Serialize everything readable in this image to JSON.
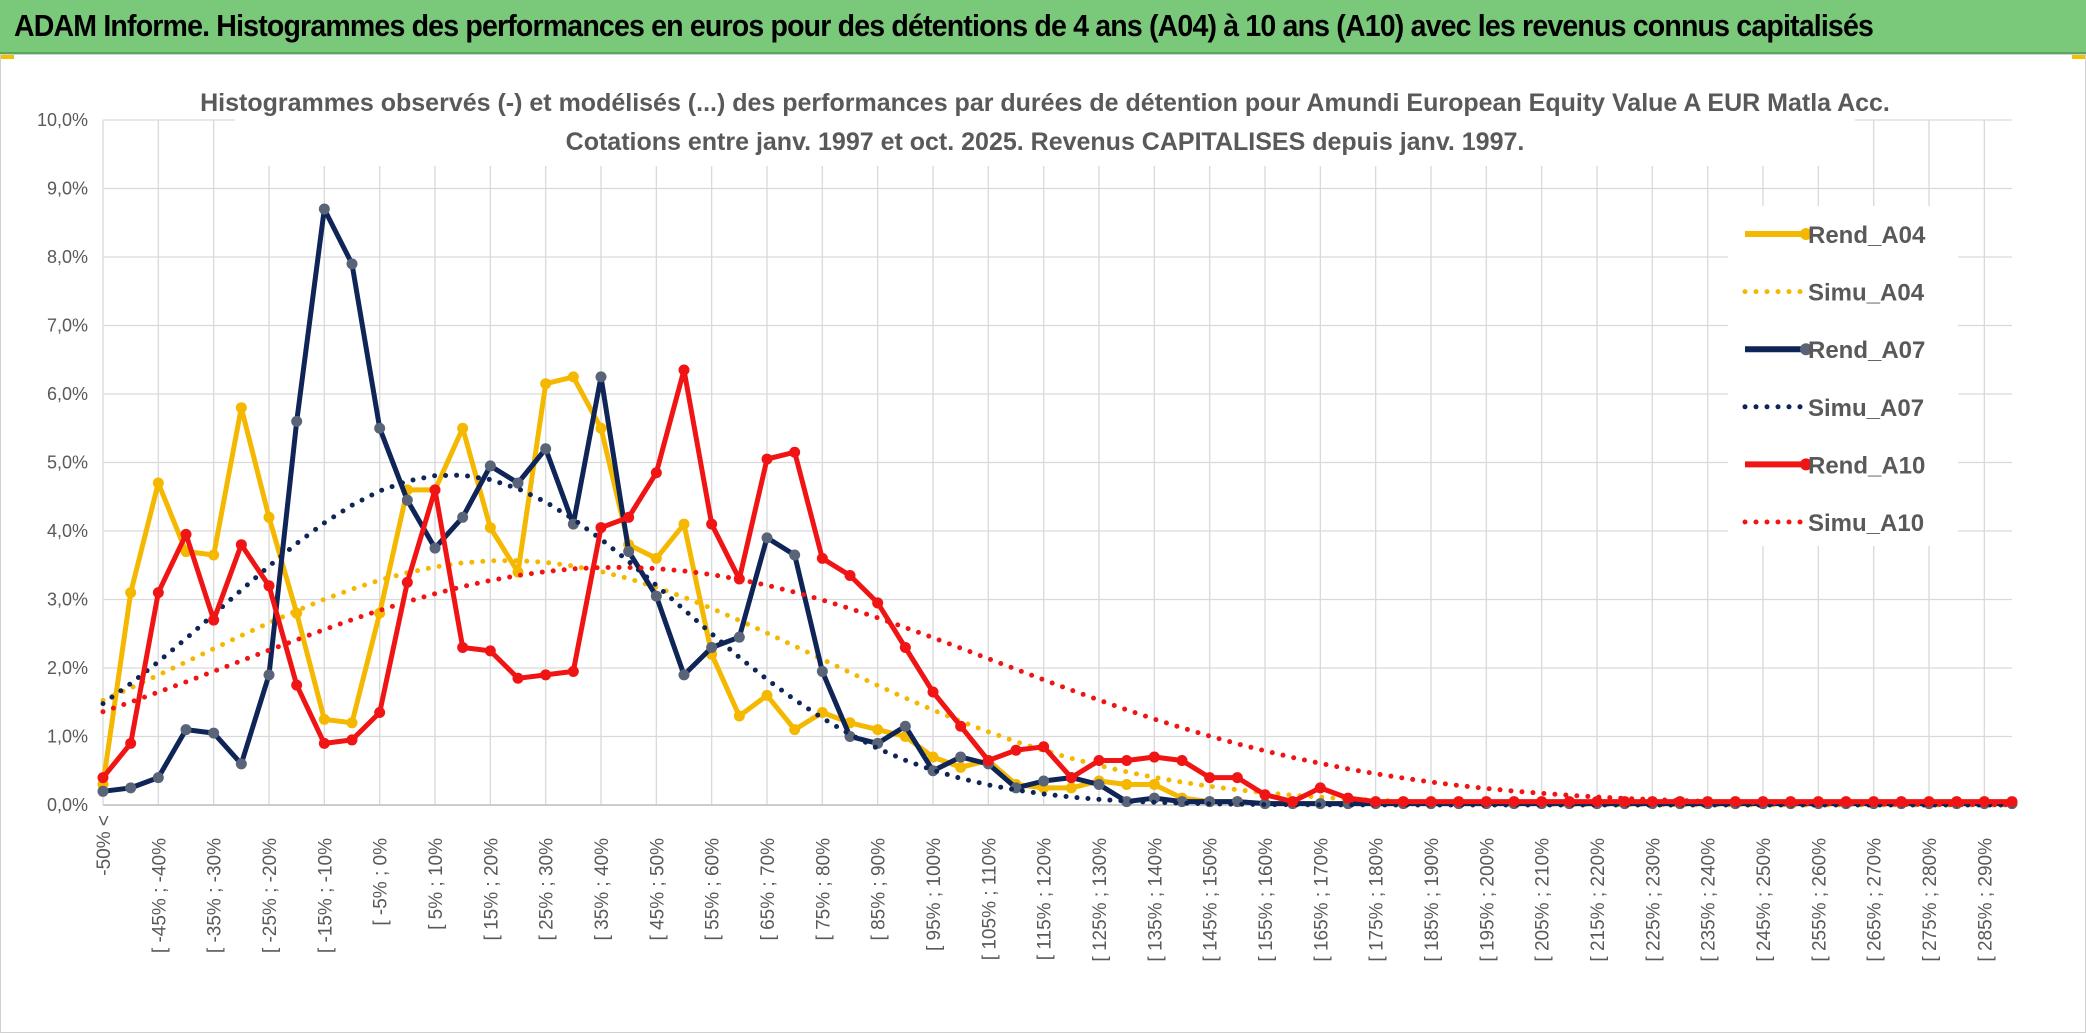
{
  "header": {
    "banner_title": "ADAM Informe. Histogrammes des performances en euros pour des détentions de 4 ans (A04) à 10 ans (A10) avec les revenus connus capitalisés"
  },
  "colors": {
    "banner_bg": "#7ac87a",
    "A04": "#f5b800",
    "A07": "#0f2557",
    "A10": "#f01414",
    "grid": "#d9d9d9",
    "text": "#595959"
  },
  "chart_data": {
    "type": "line",
    "title": [
      "Histogrammes observés (-) et modélisés (...) des performances par durées de détention pour Amundi European Equity Value A EUR Matla Acc.",
      "Cotations entre janv. 1997 et oct. 2025. Revenus CAPITALISES depuis janv. 1997."
    ],
    "xlabel": "",
    "ylabel": "",
    "ylim": [
      0,
      10
    ],
    "y_ticks": [
      "0,0%",
      "1,0%",
      "2,0%",
      "3,0%",
      "4,0%",
      "5,0%",
      "6,0%",
      "7,0%",
      "8,0%",
      "9,0%",
      "10,0%"
    ],
    "x_tick_labels": [
      "-50% <",
      "[ -45% ; -40%",
      "[ -35% ; -30%",
      "[ -25% ; -20%",
      "[ -15% ; -10%",
      "[ -5% ; 0%",
      "[ 5% ; 10%",
      "[ 15% ; 20%",
      "[ 25% ; 30%",
      "[ 35% ; 40%",
      "[ 45% ; 50%",
      "[ 55% ; 60%",
      "[ 65% ; 70%",
      "[ 75% ; 80%",
      "[ 85% ; 90%",
      "[ 95% ; 100%",
      "[ 105% ; 110%",
      "[ 115% ; 120%",
      "[ 125% ; 130%",
      "[ 135% ; 140%",
      "[ 145% ; 150%",
      "[ 155% ; 160%",
      "[ 165% ; 170%",
      "[ 175% ; 180%",
      "[ 185% ; 190%",
      "[ 195% ; 200%",
      "[ 205% ; 210%",
      "[ 215% ; 220%",
      "[ 225% ; 230%",
      "[ 235% ; 240%",
      "[ 245% ; 250%",
      "[ 255% ; 260%",
      "[ 265% ; 270%",
      "[ 275% ; 280%",
      "[ 285% ; 290%"
    ],
    "n_categories": 70,
    "series": [
      {
        "name": "Rend_A04",
        "style": "solid",
        "color": "#f5b800",
        "values": [
          0.3,
          3.1,
          4.7,
          3.7,
          3.65,
          5.8,
          4.2,
          2.8,
          1.25,
          1.2,
          2.8,
          4.6,
          4.6,
          5.5,
          4.05,
          3.4,
          6.15,
          6.25,
          5.5,
          3.8,
          3.6,
          4.1,
          2.2,
          1.3,
          1.6,
          1.1,
          1.35,
          1.2,
          1.1,
          1.0,
          0.7,
          0.55,
          0.65,
          0.3,
          0.25,
          0.25,
          0.35,
          0.3,
          0.3,
          0.1,
          0.05,
          0.05,
          0.02,
          0.02,
          0.02,
          0.02,
          0.02,
          0.02,
          0.02,
          0.02,
          0.02,
          0.02,
          0.02,
          0.02,
          0.02,
          0.02,
          0.02,
          0.02,
          0.02,
          0.02,
          0.02,
          0.02,
          0.02,
          0.02,
          0.02,
          0.02,
          0.02,
          0.02,
          0.02,
          0.02
        ]
      },
      {
        "name": "Simu_A04",
        "style": "dotted",
        "color": "#f5b800",
        "mean": 14.6,
        "sd": 11.2,
        "peak": 3.57
      },
      {
        "name": "Rend_A07",
        "style": "solid",
        "color": "#0f2557",
        "values": [
          0.2,
          0.25,
          0.4,
          1.1,
          1.05,
          0.6,
          1.9,
          5.6,
          8.7,
          7.9,
          5.5,
          4.45,
          3.75,
          4.2,
          4.95,
          4.7,
          5.2,
          4.1,
          6.25,
          3.7,
          3.05,
          1.9,
          2.3,
          2.45,
          3.9,
          3.65,
          1.95,
          1.0,
          0.9,
          1.15,
          0.5,
          0.7,
          0.6,
          0.25,
          0.35,
          0.4,
          0.3,
          0.05,
          0.1,
          0.05,
          0.05,
          0.05,
          0.02,
          0.02,
          0.02,
          0.02,
          0.02,
          0.02,
          0.02,
          0.02,
          0.02,
          0.02,
          0.02,
          0.02,
          0.02,
          0.02,
          0.02,
          0.02,
          0.02,
          0.02,
          0.02,
          0.02,
          0.02,
          0.02,
          0.02,
          0.02,
          0.02,
          0.02,
          0.02,
          0.02
        ]
      },
      {
        "name": "Simu_A07",
        "style": "dotted",
        "color": "#0f2557",
        "mean": 12.6,
        "sd": 8.2,
        "peak": 4.82
      },
      {
        "name": "Rend_A10",
        "style": "solid",
        "color": "#f01414",
        "values": [
          0.4,
          0.9,
          3.1,
          3.95,
          2.7,
          3.8,
          3.2,
          1.75,
          0.9,
          0.95,
          1.35,
          3.25,
          4.6,
          2.3,
          2.25,
          1.85,
          1.9,
          1.95,
          4.05,
          4.2,
          4.85,
          6.35,
          4.1,
          3.3,
          5.05,
          5.15,
          3.6,
          3.35,
          2.95,
          2.3,
          1.65,
          1.15,
          0.65,
          0.8,
          0.85,
          0.4,
          0.65,
          0.65,
          0.7,
          0.65,
          0.4,
          0.4,
          0.15,
          0.05,
          0.25,
          0.1,
          0.05,
          0.05,
          0.05,
          0.05,
          0.05,
          0.05,
          0.05,
          0.05,
          0.05,
          0.05,
          0.05,
          0.05,
          0.05,
          0.05,
          0.05,
          0.05,
          0.05,
          0.05,
          0.05,
          0.05,
          0.05,
          0.05,
          0.05,
          0.05
        ]
      },
      {
        "name": "Simu_A10",
        "style": "dotted",
        "color": "#f01414",
        "mean": 18.6,
        "sd": 13.6,
        "peak": 3.47
      }
    ],
    "legend": [
      "Rend_A04",
      "Simu_A04",
      "Rend_A07",
      "Simu_A07",
      "Rend_A10",
      "Simu_A10"
    ],
    "legend_position": "top-right",
    "grid": true
  }
}
